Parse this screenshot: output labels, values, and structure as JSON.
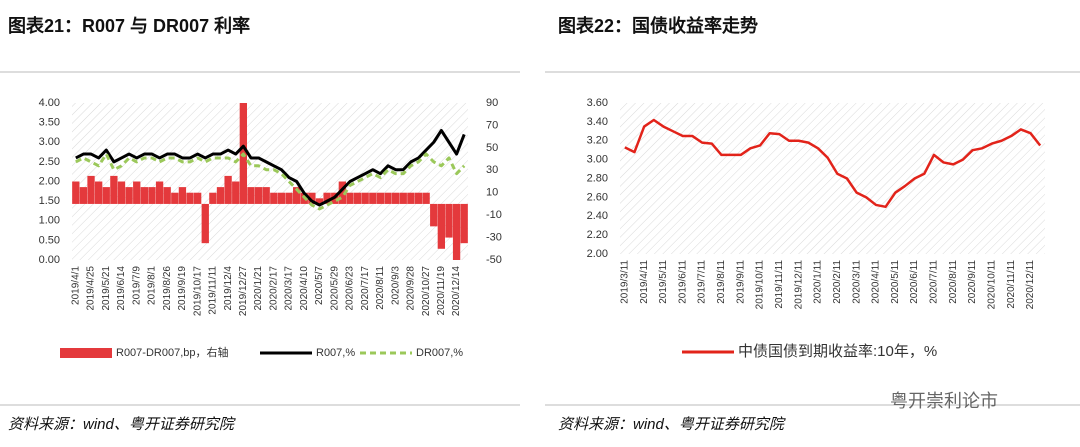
{
  "watermark": "粤开崇利论市",
  "chart_data": [
    {
      "type": "combo",
      "title": "图表21：R007 与 DR007 利率",
      "source": "资料来源：wind、粤开证券研究院",
      "categories": [
        "2019/4/1",
        null,
        "2019/4/25",
        null,
        "2019/5/21",
        null,
        "2019/6/14",
        null,
        "2019/7/9",
        null,
        "2019/8/1",
        null,
        "2019/8/26",
        null,
        "2019/9/19",
        null,
        "2019/10/17",
        null,
        "2019/11/11",
        null,
        "2019/12/4",
        null,
        "2019/12/27",
        null,
        "2020/1/21",
        null,
        "2020/2/17",
        null,
        "2020/3/17",
        null,
        "2020/4/10",
        null,
        "2020/5/7",
        null,
        "2020/5/29",
        null,
        "2020/6/23",
        null,
        "2020/7/17",
        null,
        "2020/8/11",
        null,
        "2020/9/3",
        null,
        "2020/9/28",
        null,
        "2020/10/27",
        null,
        "2020/11/19",
        null,
        "2020/12/14",
        null
      ],
      "ylim": [
        0,
        4
      ],
      "yticks": [
        {
          "value": 0,
          "label": "0.00"
        },
        {
          "value": 0.5,
          "label": "0.50"
        },
        {
          "value": 1,
          "label": "1.00"
        },
        {
          "value": 1.5,
          "label": "1.50"
        },
        {
          "value": 2,
          "label": "2.00"
        },
        {
          "value": 2.5,
          "label": "2.50"
        },
        {
          "value": 3,
          "label": "3.00"
        },
        {
          "value": 3.5,
          "label": "3.50"
        },
        {
          "value": 4,
          "label": "4.00"
        }
      ],
      "y2lim": [
        -50,
        90
      ],
      "y2ticks": [
        -50,
        -30,
        -10,
        10,
        30,
        50,
        70,
        90
      ],
      "series": [
        {
          "name": "R007-DR007,bp，右轴",
          "type": "bar",
          "axis": "y2",
          "color": "#e4393c",
          "values": [
            20,
            15,
            25,
            20,
            15,
            25,
            20,
            15,
            20,
            15,
            15,
            20,
            15,
            10,
            15,
            10,
            10,
            -35,
            10,
            15,
            25,
            20,
            90,
            15,
            15,
            15,
            10,
            10,
            10,
            15,
            10,
            10,
            5,
            10,
            10,
            20,
            10,
            10,
            10,
            10,
            10,
            10,
            10,
            10,
            10,
            10,
            10,
            -20,
            -40,
            -30,
            -50,
            -35
          ]
        },
        {
          "name": "R007,%",
          "type": "line",
          "color": "#000000",
          "values": [
            2.6,
            2.7,
            2.7,
            2.6,
            2.8,
            2.5,
            2.6,
            2.7,
            2.6,
            2.7,
            2.7,
            2.6,
            2.7,
            2.7,
            2.6,
            2.6,
            2.7,
            2.6,
            2.7,
            2.7,
            2.8,
            2.7,
            2.9,
            2.6,
            2.6,
            2.5,
            2.4,
            2.3,
            2.1,
            2.0,
            1.7,
            1.5,
            1.4,
            1.5,
            1.6,
            1.8,
            2.0,
            2.1,
            2.2,
            2.3,
            2.2,
            2.4,
            2.3,
            2.3,
            2.5,
            2.6,
            2.8,
            3.0,
            3.3,
            3.0,
            2.7,
            3.2
          ]
        },
        {
          "name": "DR007,%",
          "type": "line",
          "dashed": true,
          "color": "#9bc85a",
          "values": [
            2.5,
            2.6,
            2.5,
            2.4,
            2.7,
            2.3,
            2.4,
            2.6,
            2.5,
            2.6,
            2.6,
            2.5,
            2.6,
            2.6,
            2.5,
            2.5,
            2.6,
            2.5,
            2.6,
            2.6,
            2.6,
            2.5,
            2.7,
            2.4,
            2.4,
            2.3,
            2.3,
            2.2,
            2.0,
            1.8,
            1.6,
            1.4,
            1.3,
            1.4,
            1.5,
            1.6,
            1.9,
            2.0,
            2.1,
            2.2,
            2.1,
            2.3,
            2.2,
            2.2,
            2.4,
            2.5,
            2.7,
            2.5,
            2.4,
            2.6,
            2.2,
            2.4
          ]
        }
      ]
    },
    {
      "type": "line",
      "title": "图表22：国债收益率走势",
      "source": "资料来源：wind、粤开证券研究院",
      "categories": [
        "2019/3/11",
        null,
        "2019/4/11",
        null,
        "2019/5/11",
        null,
        "2019/6/11",
        null,
        "2019/7/11",
        null,
        "2019/8/11",
        null,
        "2019/9/11",
        null,
        "2019/10/11",
        null,
        "2019/11/11",
        null,
        "2019/12/11",
        null,
        "2020/1/11",
        null,
        "2020/2/11",
        null,
        "2020/3/11",
        null,
        "2020/4/11",
        null,
        "2020/5/11",
        null,
        "2020/6/11",
        null,
        "2020/7/11",
        null,
        "2020/8/11",
        null,
        "2020/9/11",
        null,
        "2020/10/11",
        null,
        "2020/11/11",
        null,
        "2020/12/11",
        null
      ],
      "ylim": [
        2,
        3.6
      ],
      "yticks": [
        {
          "value": 2,
          "label": "2.00"
        },
        {
          "value": 2.2,
          "label": "2.20"
        },
        {
          "value": 2.4,
          "label": "2.40"
        },
        {
          "value": 2.6,
          "label": "2.60"
        },
        {
          "value": 2.8,
          "label": "2.80"
        },
        {
          "value": 3,
          "label": "3.00"
        },
        {
          "value": 3.2,
          "label": "3.20"
        },
        {
          "value": 3.4,
          "label": "3.40"
        },
        {
          "value": 3.6,
          "label": "3.60"
        }
      ],
      "series": [
        {
          "name": "中债国债到期收益率:10年，%",
          "type": "line",
          "color": "#e2231a",
          "values": [
            3.13,
            3.08,
            3.35,
            3.42,
            3.35,
            3.3,
            3.25,
            3.25,
            3.18,
            3.17,
            3.05,
            3.05,
            3.05,
            3.12,
            3.15,
            3.28,
            3.27,
            3.2,
            3.2,
            3.18,
            3.12,
            3.02,
            2.85,
            2.8,
            2.65,
            2.6,
            2.52,
            2.5,
            2.65,
            2.72,
            2.8,
            2.85,
            3.05,
            2.97,
            2.95,
            3.0,
            3.1,
            3.12,
            3.17,
            3.2,
            3.25,
            3.32,
            3.28,
            3.15
          ]
        }
      ]
    }
  ]
}
